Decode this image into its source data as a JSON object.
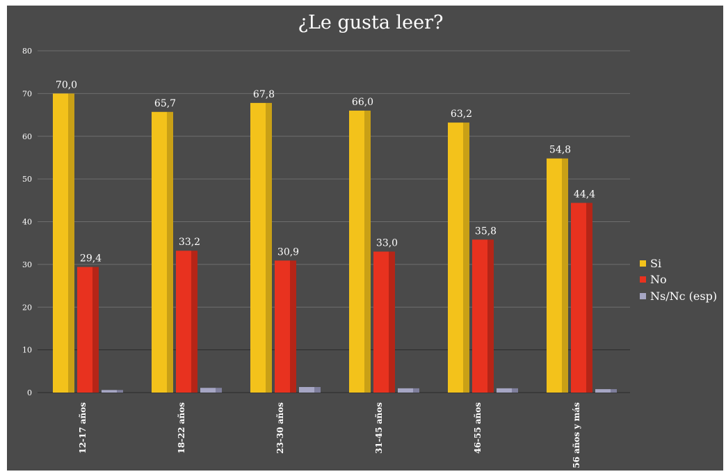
{
  "chart_data": {
    "type": "bar",
    "title": "¿Le gusta leer?",
    "categories": [
      "12-17 años",
      "18-22 años",
      "23-30 años",
      "31-45 años",
      "46-55 años",
      "56 años y más"
    ],
    "series": [
      {
        "name": "Si",
        "values": [
          70.0,
          65.7,
          67.8,
          66.0,
          63.2,
          54.8
        ],
        "labels": [
          "70,0",
          "65,7",
          "67,8",
          "66,0",
          "63,2",
          "54,8"
        ],
        "color": "#f3c21b",
        "side": "#c9a016"
      },
      {
        "name": "No",
        "values": [
          29.4,
          33.2,
          30.9,
          33.0,
          35.8,
          44.4
        ],
        "labels": [
          "29,4",
          "33,2",
          "30,9",
          "33,0",
          "35,8",
          "44,4"
        ],
        "color": "#e8321f",
        "side": "#b52517"
      },
      {
        "name": "Ns/Nc (esp)",
        "values": [
          0.6,
          1.1,
          1.3,
          1.0,
          1.0,
          0.8
        ],
        "labels": [],
        "color": "#a6a6c4",
        "side": "#7f7f9c"
      }
    ],
    "yticks": [
      "0",
      "10",
      "20",
      "30",
      "40",
      "50",
      "60",
      "70",
      "80"
    ],
    "ylim": [
      0,
      80
    ],
    "grid": true,
    "legend": "right",
    "colors": {
      "background": "#4a4a4a",
      "grid": "#6e6e6e",
      "axis": "#2a2a2a"
    }
  }
}
